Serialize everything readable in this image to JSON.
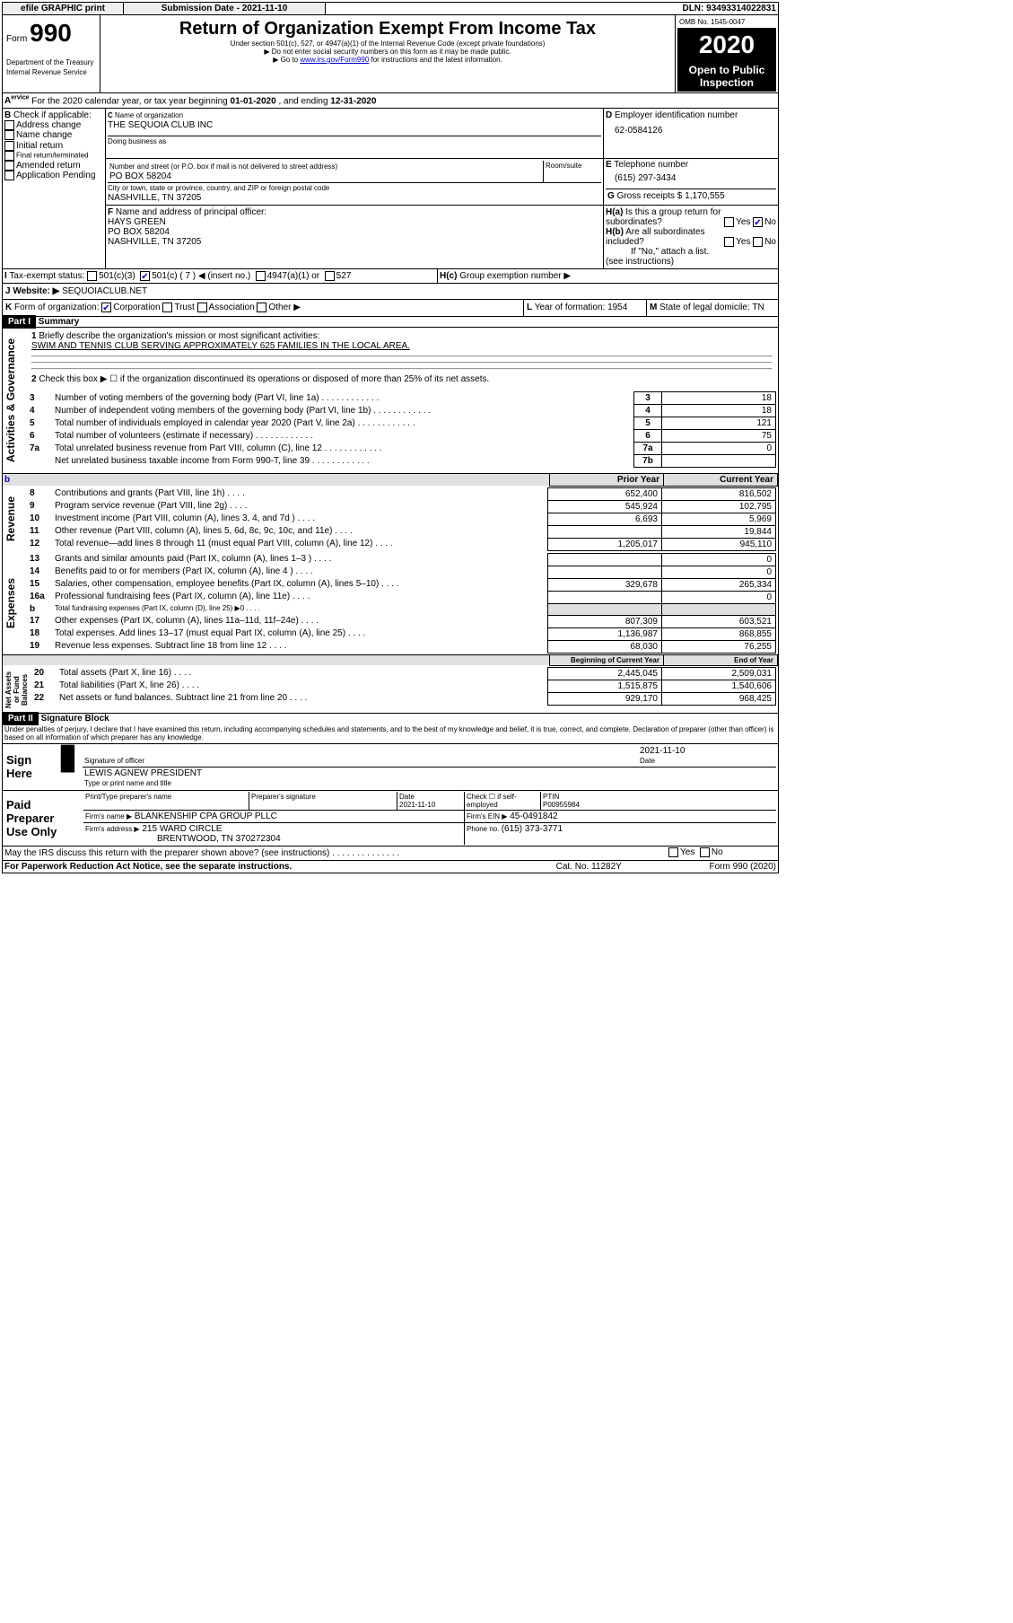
{
  "topbar": {
    "btn1": "efile GRAPHIC print",
    "btn2": "Submission Date - 2021-11-10",
    "dln": "DLN: 93493314022831"
  },
  "hdr": {
    "form": "990",
    "formlabel": "Form",
    "title": "Return of Organization Exempt From Income Tax",
    "sub1": "Under section 501(c), 527, or 4947(a)(1) of the Internal Revenue Code (except private foundations)",
    "sub2": "▶ Do not enter social security numbers on this form as it may be made public.",
    "sub3": "▶ Go to ",
    "sublink": "www.irs.gov/Form990",
    "sub4": " for instructions and the latest information.",
    "omb": "OMB No. 1545-0047",
    "year": "2020",
    "open": "Open to Public Inspection",
    "dept": "Department of the Treasury",
    "irs": "Internal Revenue Service"
  },
  "periodA": {
    "label": "For the 2020 calendar year, or tax year beginning ",
    "d1": "01-01-2020",
    "mid": ", and ending ",
    "d2": "12-31-2020"
  },
  "B": {
    "label": "Check if applicable:",
    "opts": [
      "Address change",
      "Name change",
      "Initial return",
      "Final return/terminated",
      "Amended return",
      "Application Pending"
    ]
  },
  "C": {
    "nameLbl": "Name of organization",
    "name": "THE SEQUOIA CLUB INC",
    "dbaLbl": "Doing business as",
    "addrLbl": "Number and street (or P.O. box if mail is not delivered to street address)",
    "roomLbl": "Room/suite",
    "addr": "PO BOX 58204",
    "cityLbl": "City or town, state or province, country, and ZIP or foreign postal code",
    "city": "NASHVILLE, TN  37205"
  },
  "D": {
    "lbl": "Employer identification number",
    "val": "62-0584126"
  },
  "E": {
    "lbl": "Telephone number",
    "val": "(615) 297-3434"
  },
  "G": {
    "lbl": "Gross receipts $ ",
    "val": "1,170,555"
  },
  "F": {
    "lbl": "Name and address of principal officer:",
    "name": "HAYS GREEN",
    "addr": "PO BOX 58204",
    "city": "NASHVILLE, TN  37205"
  },
  "H": {
    "a": "Is this a group return for subordinates?",
    "b": "Are all subordinates included?",
    "bnote": "If \"No,\" attach a list. (see instructions)",
    "c": "Group exemption number ▶",
    "yes": "Yes",
    "no": "No"
  },
  "I": {
    "lbl": "Tax-exempt status:",
    "c7": "501(c) ( 7 ) ◀ (insert no.)",
    "a": "501(c)(3)",
    "b": "4947(a)(1) or",
    "c": "527"
  },
  "J": {
    "lbl": "Website: ▶",
    "val": "SEQUOIACLUB.NET"
  },
  "K": {
    "lbl": "Form of organization:",
    "opts": [
      "Corporation",
      "Trust",
      "Association",
      "Other ▶"
    ]
  },
  "L": {
    "lbl": "Year of formation: ",
    "val": "1954"
  },
  "M": {
    "lbl": "State of legal domicile: ",
    "val": "TN"
  },
  "partI": {
    "lbl": "Part I",
    "title": "Summary"
  },
  "summary": {
    "q1": "Briefly describe the organization's mission or most significant activities:",
    "mission": "SWIM AND TENNIS CLUB SERVING APPROXIMATELY 625 FAMILIES IN THE LOCAL AREA.",
    "q2": "Check this box ▶ ☐  if the organization discontinued its operations or disposed of more than 25% of its net assets.",
    "rows": [
      {
        "n": "3",
        "t": "Number of voting members of the governing body (Part VI, line 1a)",
        "k": "3",
        "v": "18"
      },
      {
        "n": "4",
        "t": "Number of independent voting members of the governing body (Part VI, line 1b)",
        "k": "4",
        "v": "18"
      },
      {
        "n": "5",
        "t": "Total number of individuals employed in calendar year 2020 (Part V, line 2a)",
        "k": "5",
        "v": "121"
      },
      {
        "n": "6",
        "t": "Total number of volunteers (estimate if necessary)",
        "k": "6",
        "v": "75"
      },
      {
        "n": "7a",
        "t": "Total unrelated business revenue from Part VIII, column (C), line 12",
        "k": "7a",
        "v": "0"
      },
      {
        "n": "",
        "t": "Net unrelated business taxable income from Form 990-T, line 39",
        "k": "7b",
        "v": ""
      }
    ],
    "colPrior": "Prior Year",
    "colCurr": "Current Year",
    "rev": [
      {
        "n": "8",
        "t": "Contributions and grants (Part VIII, line 1h)",
        "p": "652,400",
        "c": "816,502"
      },
      {
        "n": "9",
        "t": "Program service revenue (Part VIII, line 2g)",
        "p": "545,924",
        "c": "102,795"
      },
      {
        "n": "10",
        "t": "Investment income (Part VIII, column (A), lines 3, 4, and 7d )",
        "p": "6,693",
        "c": "5,969"
      },
      {
        "n": "11",
        "t": "Other revenue (Part VIII, column (A), lines 5, 6d, 8c, 9c, 10c, and 11e)",
        "p": "",
        "c": "19,844"
      },
      {
        "n": "12",
        "t": "Total revenue—add lines 8 through 11 (must equal Part VIII, column (A), line 12)",
        "p": "1,205,017",
        "c": "945,110"
      }
    ],
    "exp": [
      {
        "n": "13",
        "t": "Grants and similar amounts paid (Part IX, column (A), lines 1–3 )",
        "p": "",
        "c": "0"
      },
      {
        "n": "14",
        "t": "Benefits paid to or for members (Part IX, column (A), line 4 )",
        "p": "",
        "c": "0"
      },
      {
        "n": "15",
        "t": "Salaries, other compensation, employee benefits (Part IX, column (A), lines 5–10)",
        "p": "329,678",
        "c": "265,334"
      },
      {
        "n": "16a",
        "t": "Professional fundraising fees (Part IX, column (A), line 11e)",
        "p": "",
        "c": "0"
      },
      {
        "n": "b",
        "t": "Total fundraising expenses (Part IX, column (D), line 25) ▶0",
        "p": "gray",
        "c": "gray"
      },
      {
        "n": "17",
        "t": "Other expenses (Part IX, column (A), lines 11a–11d, 11f–24e)",
        "p": "807,309",
        "c": "603,521"
      },
      {
        "n": "18",
        "t": "Total expenses. Add lines 13–17 (must equal Part IX, column (A), line 25)",
        "p": "1,136,987",
        "c": "868,855"
      },
      {
        "n": "19",
        "t": "Revenue less expenses. Subtract line 18 from line 12",
        "p": "68,030",
        "c": "76,255"
      }
    ],
    "colBeg": "Beginning of Current Year",
    "colEnd": "End of Year",
    "net": [
      {
        "n": "20",
        "t": "Total assets (Part X, line 16)",
        "p": "2,445,045",
        "c": "2,509,031"
      },
      {
        "n": "21",
        "t": "Total liabilities (Part X, line 26)",
        "p": "1,515,875",
        "c": "1,540,606"
      },
      {
        "n": "22",
        "t": "Net assets or fund balances. Subtract line 21 from line 20",
        "p": "929,170",
        "c": "968,425"
      }
    ],
    "sideA": "Activities & Governance",
    "sideR": "Revenue",
    "sideE": "Expenses",
    "sideN": "Net Assets or Fund Balances"
  },
  "partII": {
    "lbl": "Part II",
    "title": "Signature Block",
    "decl": "Under penalties of perjury, I declare that I have examined this return, including accompanying schedules and statements, and to the best of my knowledge and belief, it is true, correct, and complete. Declaration of preparer (other than officer) is based on all information of which preparer has any knowledge."
  },
  "sign": {
    "here": "Sign Here",
    "sig": "Signature of officer",
    "date": "Date",
    "datev": "2021-11-10",
    "name": "LEWIS AGNEW  PRESIDENT",
    "nameLbl": "Type or print name and title"
  },
  "paid": {
    "lbl": "Paid Preparer Use Only",
    "h1": "Print/Type preparer's name",
    "h2": "Preparer's signature",
    "h3": "Date",
    "h3v": "2021-11-10",
    "h4": "Check ☐ if self-employed",
    "h5": "PTIN",
    "h5v": "P00955984",
    "firm": "Firm's name    ▶",
    "firmv": "BLANKENSHIP CPA GROUP PLLC",
    "ein": "Firm's EIN ▶",
    "einv": "45-0491842",
    "addr": "Firm's address ▶",
    "addrv": "215 WARD CIRCLE",
    "addrcity": "BRENTWOOD, TN  370272304",
    "ph": "Phone no. ",
    "phv": "(615) 373-3771",
    "may": "May the IRS discuss this return with the preparer shown above? (see instructions)",
    "yes": "Yes",
    "no": "No"
  },
  "foot": {
    "a": "For Paperwork Reduction Act Notice, see the separate instructions.",
    "b": "Cat. No. 11282Y",
    "c": "Form 990 (2020)"
  }
}
